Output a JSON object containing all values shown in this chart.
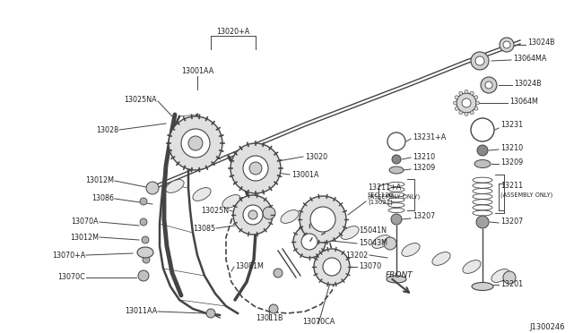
{
  "bg_color": "#ffffff",
  "line_color": "#444444",
  "text_color": "#222222",
  "diagram_id": "J1300246",
  "figsize": [
    6.4,
    3.72
  ],
  "dpi": 100,
  "xlim": [
    0,
    640
  ],
  "ylim": [
    0,
    372
  ]
}
